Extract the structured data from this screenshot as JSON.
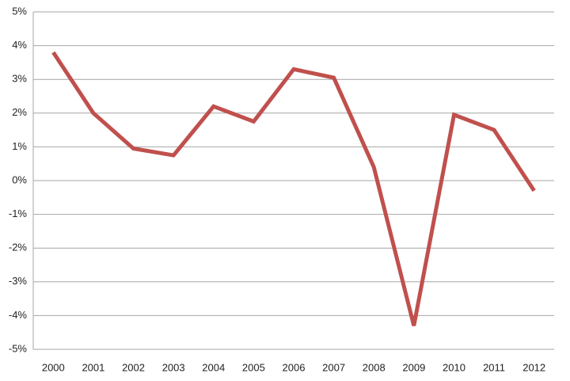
{
  "chart_data": {
    "type": "line",
    "categories": [
      "2000",
      "2001",
      "2002",
      "2003",
      "2004",
      "2005",
      "2006",
      "2007",
      "2008",
      "2009",
      "2010",
      "2011",
      "2012"
    ],
    "values": [
      3.8,
      2.0,
      0.95,
      0.75,
      2.2,
      1.75,
      3.3,
      3.05,
      0.4,
      -4.3,
      1.95,
      1.5,
      -0.3
    ],
    "color": "#c0504d",
    "ylim": [
      -5,
      5
    ],
    "yticks": [
      {
        "value": -5,
        "label": "-5%"
      },
      {
        "value": -4,
        "label": "-4%"
      },
      {
        "value": -3,
        "label": "-3%"
      },
      {
        "value": -2,
        "label": "-2%"
      },
      {
        "value": -1,
        "label": "-1%"
      },
      {
        "value": 0,
        "label": "0%"
      },
      {
        "value": 1,
        "label": "1%"
      },
      {
        "value": 2,
        "label": "2%"
      },
      {
        "value": 3,
        "label": "3%"
      },
      {
        "value": 4,
        "label": "4%"
      },
      {
        "value": 5,
        "label": "5%"
      }
    ],
    "grid": true
  }
}
